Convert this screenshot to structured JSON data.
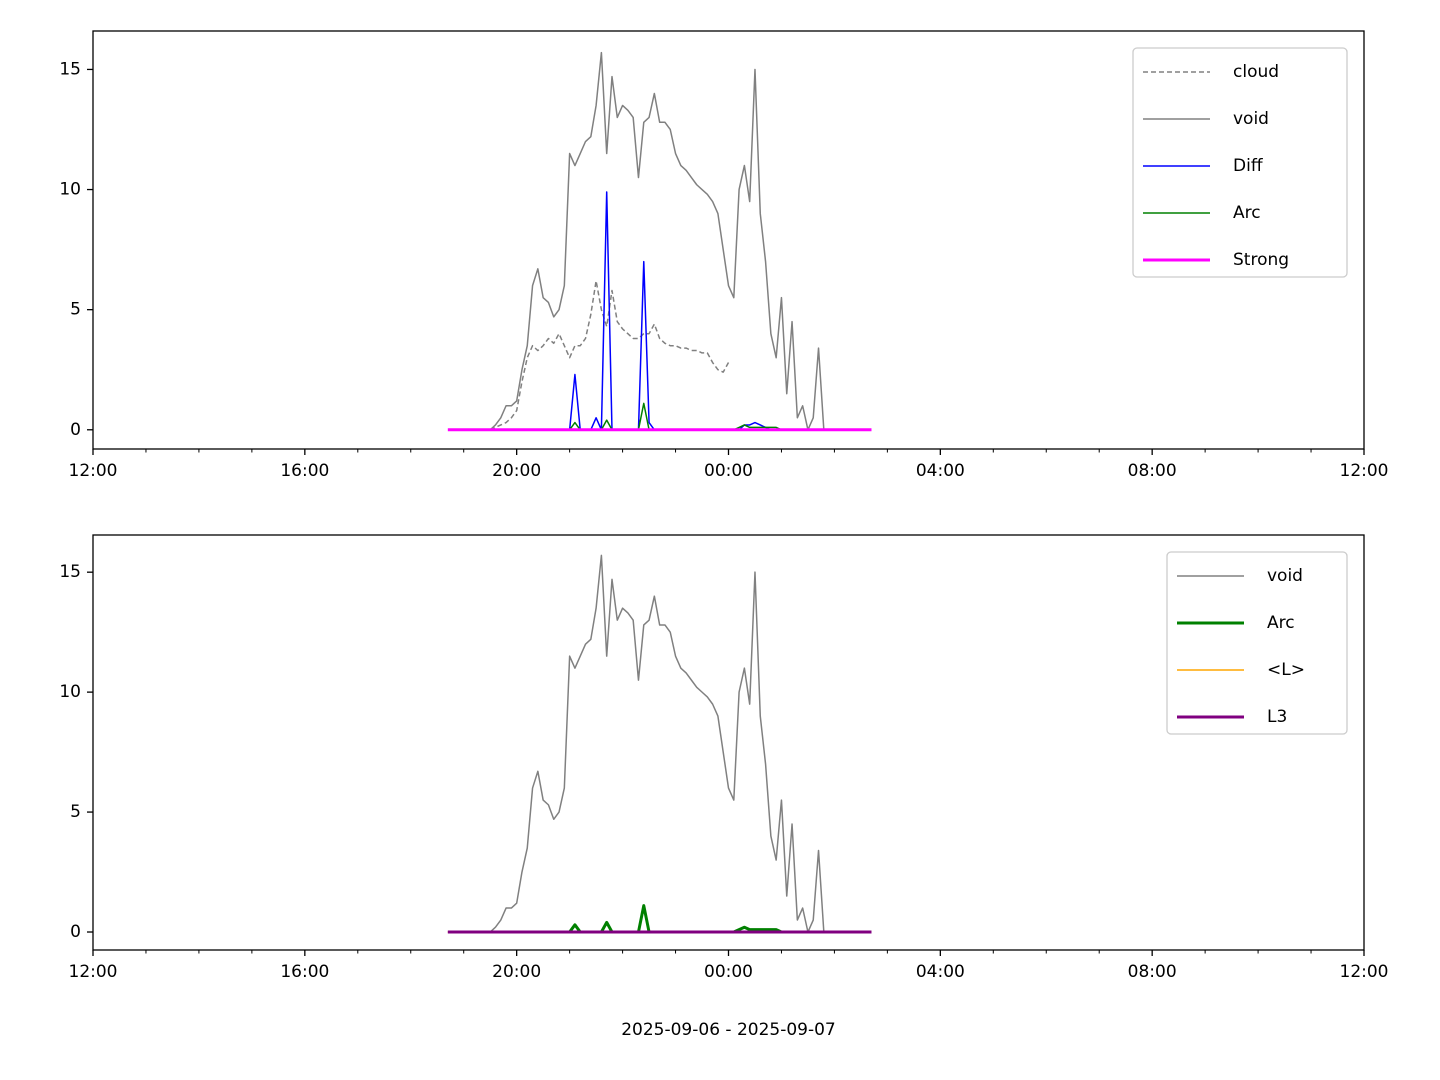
{
  "chart_data": [
    {
      "type": "line",
      "x": [
        6.7,
        6.8,
        6.9,
        7.0,
        7.1,
        7.2,
        7.3,
        7.4,
        7.5,
        7.6,
        7.7,
        7.8,
        7.9,
        8.0,
        8.1,
        8.2,
        8.3,
        8.4,
        8.5,
        8.6,
        8.7,
        8.8,
        8.9,
        9.0,
        9.1,
        9.2,
        9.3,
        9.4,
        9.5,
        9.6,
        9.7,
        9.8,
        9.9,
        10.0,
        10.1,
        10.2,
        10.3,
        10.4,
        10.5,
        10.6,
        10.7,
        10.8,
        10.9,
        11.0,
        11.1,
        11.2,
        11.3,
        11.4,
        11.5,
        11.6,
        11.7,
        11.8,
        11.9,
        12.0,
        12.1,
        12.2,
        12.3,
        12.4,
        12.5,
        12.6,
        12.7,
        12.8,
        12.9,
        13.0,
        13.1,
        13.2,
        13.3,
        13.4,
        13.5,
        13.6,
        13.7,
        13.8,
        13.9,
        14.0,
        14.1,
        14.2,
        14.3,
        14.4,
        14.5,
        14.6,
        14.7
      ],
      "xlim": [
        0,
        24
      ],
      "xticks": [
        {
          "value": 0,
          "label": "12:00"
        },
        {
          "value": 4,
          "label": "16:00"
        },
        {
          "value": 8,
          "label": "20:00"
        },
        {
          "value": 12,
          "label": "00:00"
        },
        {
          "value": 16,
          "label": "04:00"
        },
        {
          "value": 20,
          "label": "08:00"
        },
        {
          "value": 24,
          "label": "12:00"
        }
      ],
      "xminorticks": [
        1,
        2,
        3,
        5,
        6,
        7,
        9,
        10,
        11,
        13,
        14,
        15,
        17,
        18,
        19,
        21,
        22,
        23
      ],
      "ylim": [
        -0.8,
        16.6
      ],
      "yticks": [
        0,
        5,
        10,
        15
      ],
      "legend": "upper right",
      "series": [
        {
          "name": "cloud",
          "color": "#808080",
          "linestyle": "dashed",
          "linewidth": 1.5,
          "values": [
            null,
            null,
            null,
            null,
            null,
            null,
            null,
            null,
            0,
            0.1,
            0.2,
            0.3,
            0.5,
            0.8,
            2.0,
            3.0,
            3.5,
            3.3,
            3.5,
            3.8,
            3.6,
            4.0,
            3.5,
            3.0,
            3.5,
            3.5,
            3.8,
            4.8,
            6.2,
            5.0,
            4.3,
            5.8,
            4.5,
            4.2,
            4.0,
            3.8,
            3.8,
            4.0,
            4.0,
            4.4,
            3.8,
            3.6,
            3.5,
            3.5,
            3.4,
            3.4,
            3.3,
            3.3,
            3.2,
            3.2,
            2.8,
            2.5,
            2.4,
            2.8,
            null,
            null,
            null,
            null,
            null,
            null,
            null,
            null,
            null,
            null,
            null,
            null,
            null,
            null,
            null,
            null,
            null,
            null,
            null,
            null,
            null,
            null,
            null,
            null,
            null,
            null,
            null
          ]
        },
        {
          "name": "void",
          "color": "#808080",
          "linestyle": "solid",
          "linewidth": 1.5,
          "values": [
            null,
            null,
            null,
            null,
            null,
            null,
            null,
            null,
            0,
            0.2,
            0.5,
            1.0,
            1.0,
            1.2,
            2.5,
            3.5,
            6.0,
            6.7,
            5.5,
            5.3,
            4.7,
            5.0,
            6.0,
            11.5,
            11.0,
            11.5,
            12.0,
            12.2,
            13.5,
            15.7,
            11.5,
            14.7,
            13.0,
            13.5,
            13.3,
            13.0,
            10.5,
            12.8,
            13.0,
            14.0,
            12.8,
            12.8,
            12.5,
            11.5,
            11.0,
            10.8,
            10.5,
            10.2,
            10.0,
            9.8,
            9.5,
            9.0,
            7.5,
            6.0,
            5.5,
            10.0,
            11.0,
            9.5,
            15.0,
            9.0,
            7.0,
            4.0,
            3.0,
            5.5,
            1.5,
            4.5,
            0.5,
            1.0,
            0,
            0.5,
            3.4,
            0,
            null,
            null,
            null,
            null,
            null,
            null,
            null,
            null,
            null
          ]
        },
        {
          "name": "Diff",
          "color": "#0000ff",
          "linestyle": "solid",
          "linewidth": 1.5,
          "values": [
            null,
            null,
            null,
            null,
            null,
            null,
            null,
            null,
            null,
            null,
            null,
            null,
            null,
            null,
            null,
            null,
            null,
            null,
            null,
            null,
            null,
            null,
            0,
            0,
            2.3,
            0,
            0,
            0,
            0.5,
            0,
            9.9,
            0,
            0,
            0,
            0,
            0,
            0,
            7.0,
            0.3,
            0,
            0,
            0,
            0,
            0,
            0,
            0,
            0,
            0,
            0,
            0,
            0,
            0,
            0,
            0,
            0,
            0,
            0.2,
            0.2,
            0.3,
            0.2,
            0.1,
            0,
            0,
            0,
            0,
            0,
            0,
            0,
            0,
            null,
            null,
            null,
            null,
            null,
            null,
            null,
            null,
            null,
            null,
            null,
            null
          ]
        },
        {
          "name": "Arc",
          "color": "#008000",
          "linestyle": "solid",
          "linewidth": 1.5,
          "values": [
            null,
            null,
            null,
            null,
            null,
            null,
            null,
            null,
            null,
            null,
            null,
            null,
            null,
            null,
            null,
            null,
            null,
            null,
            null,
            null,
            null,
            null,
            0,
            0,
            0.3,
            0,
            0,
            0,
            0,
            0,
            0.4,
            0,
            0,
            0,
            0,
            0,
            0,
            1.1,
            0,
            0,
            0,
            0,
            0,
            0,
            0,
            0,
            0,
            0,
            0,
            0,
            0,
            0,
            0,
            0,
            0,
            0.1,
            0.2,
            0.1,
            0.1,
            0.1,
            0.1,
            0.1,
            0.1,
            0,
            null,
            null,
            null,
            null,
            null,
            null,
            null,
            null,
            null,
            null,
            null,
            null,
            null,
            null,
            null,
            null,
            null
          ]
        },
        {
          "name": "Strong",
          "color": "#ff00ff",
          "linestyle": "solid",
          "linewidth": 3,
          "values": [
            0,
            0,
            0,
            0,
            0,
            0,
            0,
            0,
            0,
            0,
            0,
            0,
            0,
            0,
            0,
            0,
            0,
            0,
            0,
            0,
            0,
            0,
            0,
            0,
            0,
            0,
            0,
            0,
            0,
            0,
            0,
            0,
            0,
            0,
            0,
            0,
            0,
            0,
            0,
            0,
            0,
            0,
            0,
            0,
            0,
            0,
            0,
            0,
            0,
            0,
            0,
            0,
            0,
            0,
            0,
            0,
            0,
            0,
            0,
            0,
            0,
            0,
            0,
            0,
            0,
            0,
            0,
            0,
            0,
            0,
            0,
            0,
            0,
            0,
            0,
            0,
            0,
            0,
            0,
            0,
            0
          ]
        }
      ]
    },
    {
      "type": "line",
      "x": [
        6.7,
        6.8,
        6.9,
        7.0,
        7.1,
        7.2,
        7.3,
        7.4,
        7.5,
        7.6,
        7.7,
        7.8,
        7.9,
        8.0,
        8.1,
        8.2,
        8.3,
        8.4,
        8.5,
        8.6,
        8.7,
        8.8,
        8.9,
        9.0,
        9.1,
        9.2,
        9.3,
        9.4,
        9.5,
        9.6,
        9.7,
        9.8,
        9.9,
        10.0,
        10.1,
        10.2,
        10.3,
        10.4,
        10.5,
        10.6,
        10.7,
        10.8,
        10.9,
        11.0,
        11.1,
        11.2,
        11.3,
        11.4,
        11.5,
        11.6,
        11.7,
        11.8,
        11.9,
        12.0,
        12.1,
        12.2,
        12.3,
        12.4,
        12.5,
        12.6,
        12.7,
        12.8,
        12.9,
        13.0,
        13.1,
        13.2,
        13.3,
        13.4,
        13.5,
        13.6,
        13.7,
        13.8,
        13.9,
        14.0,
        14.1,
        14.2,
        14.3,
        14.4,
        14.5,
        14.6,
        14.7
      ],
      "xlim": [
        0,
        24
      ],
      "xticks": [
        {
          "value": 0,
          "label": "12:00"
        },
        {
          "value": 4,
          "label": "16:00"
        },
        {
          "value": 8,
          "label": "20:00"
        },
        {
          "value": 12,
          "label": "00:00"
        },
        {
          "value": 16,
          "label": "04:00"
        },
        {
          "value": 20,
          "label": "08:00"
        },
        {
          "value": 24,
          "label": "12:00"
        }
      ],
      "xminorticks": [
        1,
        2,
        3,
        5,
        6,
        7,
        9,
        10,
        11,
        13,
        14,
        15,
        17,
        18,
        19,
        21,
        22,
        23
      ],
      "xlabel": "2025-09-06 - 2025-09-07",
      "ylim": [
        -0.75,
        16.55
      ],
      "yticks": [
        0,
        5,
        10,
        15
      ],
      "legend": "upper right",
      "series": [
        {
          "name": "void",
          "color": "#808080",
          "linestyle": "solid",
          "linewidth": 1.5,
          "values": [
            null,
            null,
            null,
            null,
            null,
            null,
            null,
            null,
            0,
            0.2,
            0.5,
            1.0,
            1.0,
            1.2,
            2.5,
            3.5,
            6.0,
            6.7,
            5.5,
            5.3,
            4.7,
            5.0,
            6.0,
            11.5,
            11.0,
            11.5,
            12.0,
            12.2,
            13.5,
            15.7,
            11.5,
            14.7,
            13.0,
            13.5,
            13.3,
            13.0,
            10.5,
            12.8,
            13.0,
            14.0,
            12.8,
            12.8,
            12.5,
            11.5,
            11.0,
            10.8,
            10.5,
            10.2,
            10.0,
            9.8,
            9.5,
            9.0,
            7.5,
            6.0,
            5.5,
            10.0,
            11.0,
            9.5,
            15.0,
            9.0,
            7.0,
            4.0,
            3.0,
            5.5,
            1.5,
            4.5,
            0.5,
            1.0,
            0,
            0.5,
            3.4,
            0,
            null,
            null,
            null,
            null,
            null,
            null,
            null,
            null,
            null
          ]
        },
        {
          "name": "Arc",
          "color": "#008000",
          "linestyle": "solid",
          "linewidth": 3,
          "values": [
            null,
            null,
            null,
            null,
            null,
            null,
            null,
            null,
            null,
            null,
            null,
            null,
            null,
            null,
            null,
            null,
            null,
            null,
            null,
            null,
            null,
            null,
            0,
            0,
            0.3,
            0,
            0,
            0,
            0,
            0,
            0.4,
            0,
            0,
            0,
            0,
            0,
            0,
            1.1,
            0,
            0,
            0,
            0,
            0,
            0,
            0,
            0,
            0,
            0,
            0,
            0,
            0,
            0,
            0,
            0,
            0,
            0.1,
            0.2,
            0.1,
            0.1,
            0.1,
            0.1,
            0.1,
            0.1,
            0,
            null,
            null,
            null,
            null,
            null,
            null,
            null,
            null,
            null,
            null,
            null,
            null,
            null,
            null,
            null,
            null,
            null
          ]
        },
        {
          "name": "<L>",
          "color": "#ffa500",
          "linestyle": "solid",
          "linewidth": 1.5,
          "values": [
            0,
            0,
            0,
            0,
            0,
            0,
            0,
            0,
            0,
            0,
            0,
            0,
            0,
            0,
            0,
            0,
            0,
            0,
            0,
            0,
            0,
            0,
            0,
            0,
            0,
            0,
            0,
            0,
            0,
            0,
            0,
            0,
            0,
            0,
            0,
            0,
            0,
            0,
            0,
            0,
            0,
            0,
            0,
            0,
            0,
            0,
            0,
            0,
            0,
            0,
            0,
            0,
            0,
            0,
            0,
            0,
            0,
            0,
            0,
            0,
            0,
            0,
            0,
            0,
            0,
            0,
            0,
            0,
            0,
            0,
            0,
            0,
            0,
            0,
            0,
            0,
            0,
            0,
            0,
            0,
            0
          ]
        },
        {
          "name": "L3",
          "color": "#800080",
          "linestyle": "solid",
          "linewidth": 3,
          "values": [
            0,
            0,
            0,
            0,
            0,
            0,
            0,
            0,
            0,
            0,
            0,
            0,
            0,
            0,
            0,
            0,
            0,
            0,
            0,
            0,
            0,
            0,
            0,
            0,
            0,
            0,
            0,
            0,
            0,
            0,
            0,
            0,
            0,
            0,
            0,
            0,
            0,
            0,
            0,
            0,
            0,
            0,
            0,
            0,
            0,
            0,
            0,
            0,
            0,
            0,
            0,
            0,
            0,
            0,
            0,
            0,
            0,
            0,
            0,
            0,
            0,
            0,
            0,
            0,
            0,
            0,
            0,
            0,
            0,
            0,
            0,
            0,
            0,
            0,
            0,
            0,
            0,
            0,
            0,
            0,
            0
          ]
        }
      ]
    }
  ]
}
